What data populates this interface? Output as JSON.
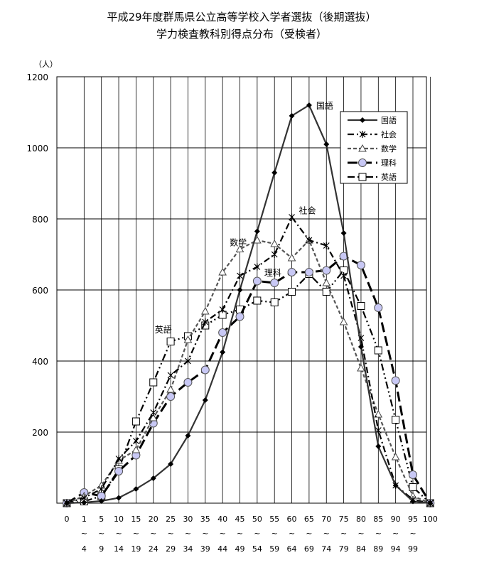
{
  "title_line1": "平成29年度群馬県公立高等学校入学者選抜（後期選抜）",
  "title_line2": "学力検査教科別得点分布（受検者）",
  "chart_data": {
    "type": "line",
    "ylabel": "（人）",
    "ylim": [
      0,
      1200
    ],
    "yticks": [
      200,
      400,
      600,
      800,
      1000,
      1200
    ],
    "grid": true,
    "legend_position": "top-right",
    "x_bins": [
      {
        "lo": "0",
        "sep": "",
        "hi": ""
      },
      {
        "lo": "1",
        "sep": "~",
        "hi": "4"
      },
      {
        "lo": "5",
        "sep": "~",
        "hi": "9"
      },
      {
        "lo": "10",
        "sep": "~",
        "hi": "14"
      },
      {
        "lo": "15",
        "sep": "~",
        "hi": "19"
      },
      {
        "lo": "20",
        "sep": "~",
        "hi": "24"
      },
      {
        "lo": "25",
        "sep": "~",
        "hi": "29"
      },
      {
        "lo": "30",
        "sep": "~",
        "hi": "34"
      },
      {
        "lo": "35",
        "sep": "~",
        "hi": "39"
      },
      {
        "lo": "40",
        "sep": "~",
        "hi": "44"
      },
      {
        "lo": "45",
        "sep": "~",
        "hi": "49"
      },
      {
        "lo": "50",
        "sep": "~",
        "hi": "54"
      },
      {
        "lo": "55",
        "sep": "~",
        "hi": "59"
      },
      {
        "lo": "60",
        "sep": "~",
        "hi": "64"
      },
      {
        "lo": "65",
        "sep": "~",
        "hi": "69"
      },
      {
        "lo": "70",
        "sep": "~",
        "hi": "74"
      },
      {
        "lo": "75",
        "sep": "~",
        "hi": "79"
      },
      {
        "lo": "80",
        "sep": "~",
        "hi": "84"
      },
      {
        "lo": "85",
        "sep": "~",
        "hi": "89"
      },
      {
        "lo": "90",
        "sep": "~",
        "hi": "94"
      },
      {
        "lo": "95",
        "sep": "~",
        "hi": "99"
      },
      {
        "lo": "100",
        "sep": "",
        "hi": ""
      }
    ],
    "series": [
      {
        "name": "国語",
        "marker": "diamond",
        "dash": "solid",
        "color": "#333333",
        "label_at": 14,
        "values": [
          0,
          2,
          6,
          15,
          40,
          70,
          110,
          190,
          290,
          425,
          600,
          765,
          930,
          1090,
          1120,
          1010,
          760,
          440,
          160,
          50,
          5,
          0
        ]
      },
      {
        "name": "社会",
        "marker": "star",
        "dash": "dashdot",
        "color": "#000000",
        "label_at": 13,
        "values": [
          0,
          15,
          40,
          125,
          175,
          255,
          360,
          400,
          510,
          545,
          640,
          665,
          700,
          805,
          740,
          725,
          640,
          465,
          205,
          50,
          10,
          0
        ]
      },
      {
        "name": "数学",
        "marker": "triangle",
        "dash": "dash",
        "color": "#555555",
        "label_at": 10,
        "values": [
          0,
          20,
          50,
          120,
          150,
          240,
          320,
          460,
          540,
          650,
          715,
          740,
          730,
          690,
          740,
          620,
          510,
          380,
          250,
          130,
          20,
          0
        ]
      },
      {
        "name": "理科",
        "marker": "circle",
        "dash": "longdash",
        "color": "#000000",
        "label_at": 12,
        "values": [
          0,
          30,
          20,
          90,
          135,
          225,
          300,
          340,
          375,
          480,
          525,
          625,
          620,
          650,
          650,
          655,
          695,
          670,
          550,
          345,
          80,
          0
        ]
      },
      {
        "name": "英語",
        "marker": "square",
        "dash": "dashdotdot",
        "color": "#000000",
        "label_at": 6,
        "values": [
          0,
          5,
          20,
          95,
          230,
          340,
          455,
          470,
          500,
          530,
          545,
          570,
          565,
          595,
          645,
          595,
          655,
          555,
          430,
          235,
          45,
          0
        ]
      }
    ]
  }
}
